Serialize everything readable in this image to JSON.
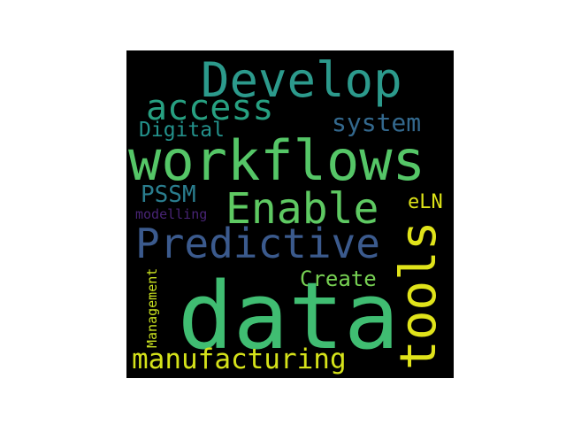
{
  "words": [
    {
      "key": "develop",
      "text": "Develop",
      "color": "#2c9a8c"
    },
    {
      "key": "access",
      "text": "access",
      "color": "#27a081"
    },
    {
      "key": "system",
      "text": "system",
      "color": "#33688d"
    },
    {
      "key": "digital",
      "text": "Digital",
      "color": "#23918b"
    },
    {
      "key": "workflows",
      "text": "workflows",
      "color": "#55c667"
    },
    {
      "key": "pssm",
      "text": "PSSM",
      "color": "#2a7d8e"
    },
    {
      "key": "enable",
      "text": "Enable",
      "color": "#5ec962"
    },
    {
      "key": "eln",
      "text": "eLN",
      "color": "#dde318"
    },
    {
      "key": "modelling",
      "text": "modelling",
      "color": "#482475"
    },
    {
      "key": "predictive",
      "text": "Predictive",
      "color": "#3b5a8d"
    },
    {
      "key": "create",
      "text": "Create",
      "color": "#77d153"
    },
    {
      "key": "data",
      "text": "data",
      "color": "#40bd72"
    },
    {
      "key": "manufacturing",
      "text": "manufacturing",
      "color": "#d5e21a"
    },
    {
      "key": "tools",
      "text": "tools",
      "color": "#e0e31a"
    },
    {
      "key": "management",
      "text": "Management",
      "color": "#c8e020"
    }
  ]
}
